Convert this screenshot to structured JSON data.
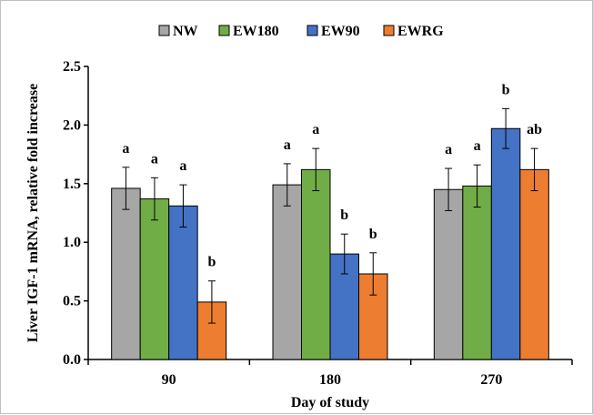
{
  "chart_data": {
    "type": "bar",
    "title": "",
    "xlabel": "Day of study",
    "ylabel": "Liver IGF-1 mRNA, relative fold increase",
    "categories": [
      "90",
      "180",
      "270"
    ],
    "ylim": [
      0,
      2.5
    ],
    "ytick_labels": [
      "0.0",
      "0.5",
      "1.0",
      "1.5",
      "2.0",
      "2.5"
    ],
    "legend_position": "top-center",
    "grid": false,
    "series": [
      {
        "name": "NW",
        "color": "#a6a6a6",
        "values": [
          1.46,
          1.49,
          1.45
        ],
        "errors": [
          0.18,
          0.18,
          0.18
        ],
        "labels": [
          "a",
          "a",
          "a"
        ]
      },
      {
        "name": "EW180",
        "color": "#70ad47",
        "values": [
          1.37,
          1.62,
          1.48
        ],
        "errors": [
          0.18,
          0.18,
          0.18
        ],
        "labels": [
          "a",
          "a",
          "a"
        ]
      },
      {
        "name": "EW90",
        "color": "#4472c4",
        "values": [
          1.31,
          0.9,
          1.97
        ],
        "errors": [
          0.18,
          0.17,
          0.17
        ],
        "labels": [
          "a",
          "b",
          "b"
        ]
      },
      {
        "name": "EWRG",
        "color": "#ed7d31",
        "values": [
          0.49,
          0.73,
          1.62
        ],
        "errors": [
          0.18,
          0.18,
          0.18
        ],
        "labels": [
          "b",
          "b",
          "ab"
        ]
      }
    ]
  }
}
